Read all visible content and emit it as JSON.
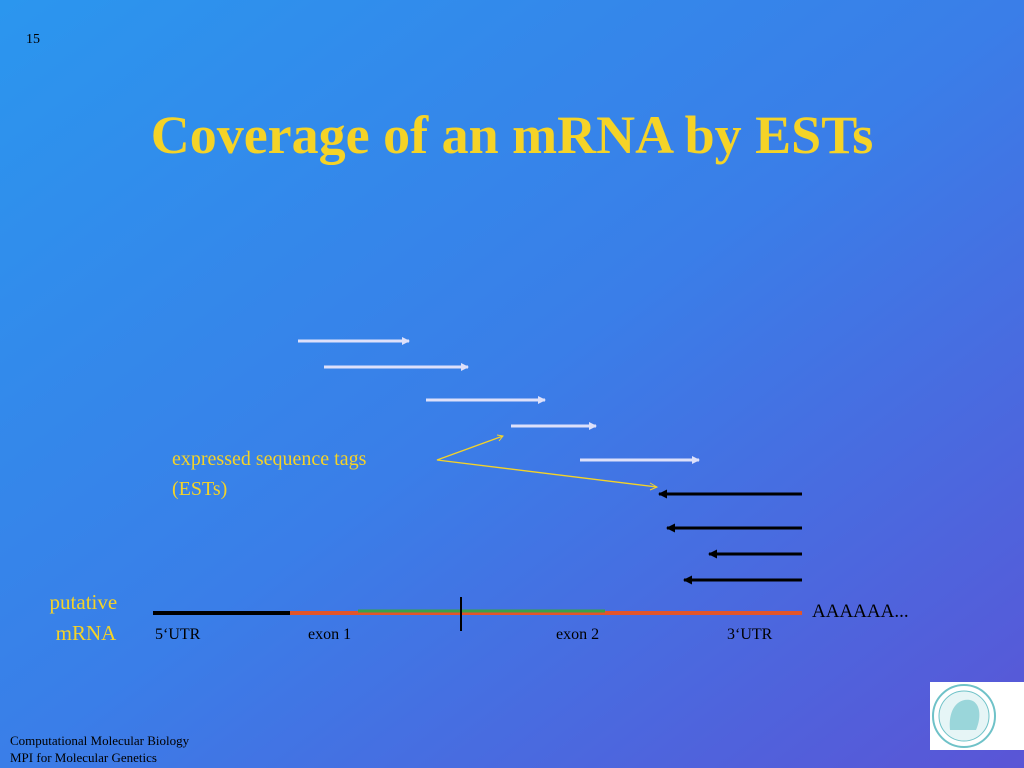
{
  "slide_number": "15",
  "title": "Coverage of an mRNA by ESTs",
  "annotation": {
    "lines": [
      "expressed sequence tags",
      "(ESTs)"
    ]
  },
  "mrna_label": {
    "lines": [
      "putative",
      "mRNA"
    ]
  },
  "regions": [
    "5‘UTR",
    "exon 1",
    "exon 2",
    "3‘UTR"
  ],
  "poly_a": "AAAAAA...",
  "footer": {
    "lines": [
      "Computational Molecular Biology",
      "MPI for Molecular Genetics"
    ]
  }
}
